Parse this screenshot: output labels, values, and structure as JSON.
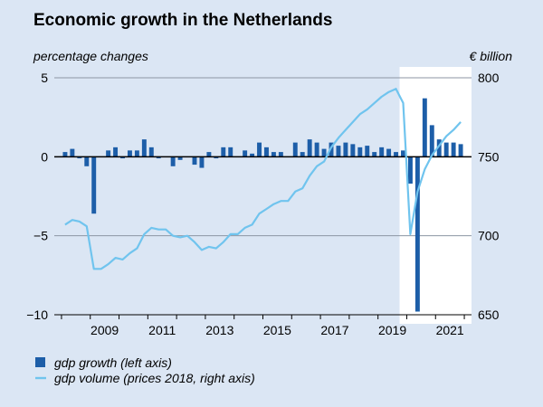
{
  "chart_data": {
    "type": "bar+line",
    "title": "Economic growth in the Netherlands",
    "left_axis_label": "percentage changes",
    "right_axis_label": "€ billion",
    "left_ylim": [
      -10,
      5
    ],
    "left_ticks": [
      {
        "v": 5,
        "label": "5"
      },
      {
        "v": 0,
        "label": "0"
      },
      {
        "v": -5,
        "label": "−5"
      },
      {
        "v": -10,
        "label": "−10"
      }
    ],
    "right_ylim": [
      650,
      800
    ],
    "right_ticks": [
      {
        "v": 800,
        "label": "800"
      },
      {
        "v": 750,
        "label": "750"
      },
      {
        "v": 700,
        "label": "700"
      },
      {
        "v": 650,
        "label": "650"
      }
    ],
    "x_range": [
      2007.75,
      2022.25
    ],
    "x_ticks": [
      {
        "year": 2009,
        "label": "2009"
      },
      {
        "year": 2011,
        "label": "2011"
      },
      {
        "year": 2013,
        "label": "2013"
      },
      {
        "year": 2015,
        "label": "2015"
      },
      {
        "year": 2017,
        "label": "2017"
      },
      {
        "year": 2019,
        "label": "2019"
      },
      {
        "year": 2021,
        "label": "2021"
      }
    ],
    "highlight_range": [
      2019.75,
      2022.25
    ],
    "colors": {
      "bar": "#1d5ea8",
      "line": "#70c4ee",
      "highlight": "#ffffff",
      "background": "#dbe6f4"
    },
    "quarters": [
      "2008Q1",
      "2008Q2",
      "2008Q3",
      "2008Q4",
      "2009Q1",
      "2009Q2",
      "2009Q3",
      "2009Q4",
      "2010Q1",
      "2010Q2",
      "2010Q3",
      "2010Q4",
      "2011Q1",
      "2011Q2",
      "2011Q3",
      "2011Q4",
      "2012Q1",
      "2012Q2",
      "2012Q3",
      "2012Q4",
      "2013Q1",
      "2013Q2",
      "2013Q3",
      "2013Q4",
      "2014Q1",
      "2014Q2",
      "2014Q3",
      "2014Q4",
      "2015Q1",
      "2015Q2",
      "2015Q3",
      "2015Q4",
      "2016Q1",
      "2016Q2",
      "2016Q3",
      "2016Q4",
      "2017Q1",
      "2017Q2",
      "2017Q3",
      "2017Q4",
      "2018Q1",
      "2018Q2",
      "2018Q3",
      "2018Q4",
      "2019Q1",
      "2019Q2",
      "2019Q3",
      "2019Q4",
      "2020Q1",
      "2020Q2",
      "2020Q3",
      "2020Q4",
      "2021Q1",
      "2021Q2",
      "2021Q3",
      "2021Q4"
    ],
    "series": [
      {
        "name": "gdp growth (left axis)",
        "type": "bar",
        "axis": "left",
        "values": [
          0.3,
          0.5,
          -0.1,
          -0.6,
          -3.6,
          0.0,
          0.4,
          0.6,
          -0.1,
          0.4,
          0.4,
          1.1,
          0.6,
          -0.1,
          0.0,
          -0.6,
          -0.2,
          0.0,
          -0.5,
          -0.7,
          0.3,
          -0.1,
          0.6,
          0.6,
          0.0,
          0.4,
          0.2,
          0.9,
          0.6,
          0.3,
          0.3,
          0.0,
          0.9,
          0.3,
          1.1,
          0.9,
          0.5,
          0.9,
          0.7,
          0.9,
          0.8,
          0.6,
          0.7,
          0.3,
          0.6,
          0.5,
          0.3,
          0.4,
          -1.7,
          -9.8,
          3.7,
          2.0,
          1.1,
          0.9,
          0.9,
          0.8
        ]
      },
      {
        "name": "gdp volume (prices 2018, right axis)",
        "type": "line",
        "axis": "right",
        "values": [
          707,
          710,
          709,
          706,
          679,
          679,
          682,
          686,
          685,
          689,
          692,
          701,
          705,
          704,
          704,
          700,
          699,
          700,
          696,
          691,
          693,
          692,
          696,
          701,
          701,
          705,
          707,
          714,
          717,
          720,
          722,
          722,
          728,
          730,
          738,
          744,
          747,
          756,
          762,
          767,
          772,
          777,
          780,
          784,
          788,
          791,
          793,
          784,
          701,
          728,
          742,
          751,
          757,
          763,
          767,
          772
        ]
      }
    ],
    "legend": [
      {
        "label": "gdp growth (left axis)",
        "symbol": "bar"
      },
      {
        "label": "gdp volume (prices 2018, right axis)",
        "symbol": "line"
      }
    ]
  }
}
